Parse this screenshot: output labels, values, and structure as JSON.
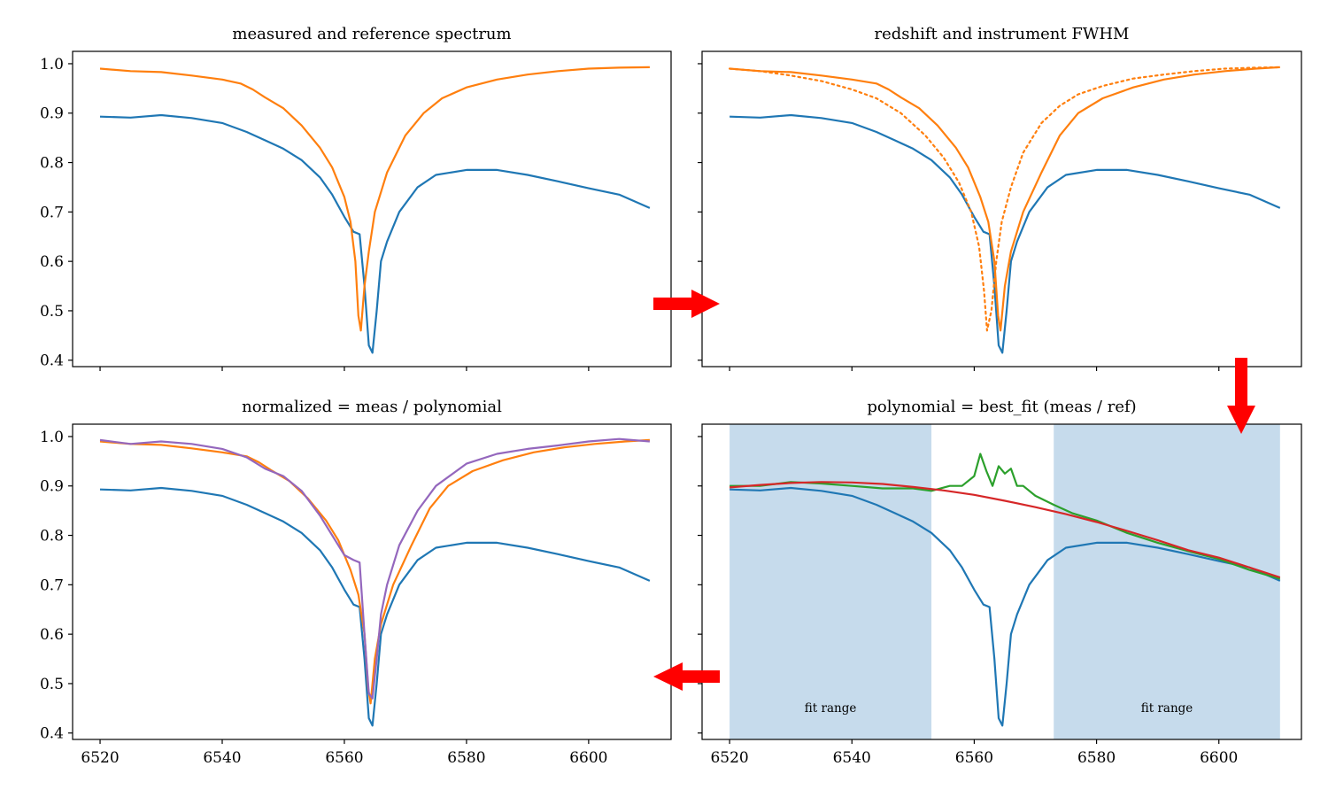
{
  "colors": {
    "measured": "#1f77b4",
    "reference": "#ff7f0e",
    "ratio": "#2ca02c",
    "polynomial": "#d62728",
    "normalized": "#9467bd",
    "fit_region": "#c6dbec",
    "arrow": "#ff0000"
  },
  "chart_data": [
    {
      "type": "line",
      "title": "measured and reference spectrum",
      "xlim": [
        6515.5,
        6613.5
      ],
      "ylim": [
        0.387,
        1.025
      ],
      "xticks": [
        6520,
        6540,
        6560,
        6580,
        6600
      ],
      "yticks": [
        "0.4",
        "0.5",
        "0.6",
        "0.7",
        "0.8",
        "0.9",
        "1.0"
      ],
      "series": [
        {
          "color": "#1f77b4",
          "style": "solid",
          "x": [
            6520,
            6525,
            6530,
            6535,
            6540,
            6544,
            6547,
            6550,
            6553,
            6556,
            6558,
            6560,
            6561.5,
            6562.5,
            6563.3,
            6564,
            6564.6,
            6565.3,
            6566,
            6567,
            6569,
            6572,
            6575,
            6580,
            6585,
            6590,
            6595,
            6600,
            6605,
            6610
          ],
          "y": [
            0.893,
            0.891,
            0.896,
            0.89,
            0.88,
            0.862,
            0.845,
            0.828,
            0.805,
            0.77,
            0.735,
            0.69,
            0.66,
            0.655,
            0.55,
            0.43,
            0.415,
            0.5,
            0.6,
            0.64,
            0.7,
            0.75,
            0.775,
            0.785,
            0.785,
            0.775,
            0.762,
            0.748,
            0.735,
            0.708
          ]
        },
        {
          "color": "#ff7f0e",
          "style": "solid",
          "x": [
            6520,
            6525,
            6530,
            6535,
            6540,
            6543,
            6545,
            6547,
            6550,
            6553,
            6556,
            6558,
            6560,
            6561,
            6561.8,
            6562.3,
            6562.7,
            6563.3,
            6564,
            6565,
            6567,
            6570,
            6573,
            6576,
            6580,
            6585,
            6590,
            6595,
            6600,
            6605,
            6610
          ],
          "y": [
            0.99,
            0.985,
            0.983,
            0.976,
            0.968,
            0.96,
            0.948,
            0.932,
            0.91,
            0.875,
            0.83,
            0.79,
            0.73,
            0.68,
            0.6,
            0.49,
            0.46,
            0.55,
            0.62,
            0.7,
            0.78,
            0.855,
            0.9,
            0.93,
            0.952,
            0.968,
            0.978,
            0.985,
            0.99,
            0.992,
            0.993
          ]
        }
      ]
    },
    {
      "type": "line",
      "title": "redshift and instrument FWHM",
      "xlim": [
        6515.5,
        6613.5
      ],
      "ylim": [
        0.387,
        1.025
      ],
      "xticks": [
        6520,
        6540,
        6560,
        6580,
        6600
      ],
      "yticks": [
        "0.4",
        "0.5",
        "0.6",
        "0.7",
        "0.8",
        "0.9",
        "1.0"
      ],
      "series": [
        {
          "color": "#1f77b4",
          "style": "solid",
          "x": [
            6520,
            6525,
            6530,
            6535,
            6540,
            6544,
            6547,
            6550,
            6553,
            6556,
            6558,
            6560,
            6561.5,
            6562.5,
            6563.3,
            6564,
            6564.6,
            6565.3,
            6566,
            6567,
            6569,
            6572,
            6575,
            6580,
            6585,
            6590,
            6595,
            6600,
            6605,
            6610
          ],
          "y": [
            0.893,
            0.891,
            0.896,
            0.89,
            0.88,
            0.862,
            0.845,
            0.828,
            0.805,
            0.77,
            0.735,
            0.69,
            0.66,
            0.655,
            0.55,
            0.43,
            0.415,
            0.5,
            0.6,
            0.64,
            0.7,
            0.75,
            0.775,
            0.785,
            0.785,
            0.775,
            0.762,
            0.748,
            0.735,
            0.708
          ]
        },
        {
          "color": "#ff7f0e",
          "style": "solid",
          "x": [
            6520,
            6525,
            6530,
            6535,
            6540,
            6544,
            6546,
            6548,
            6551,
            6554,
            6557,
            6559,
            6561,
            6562.3,
            6563.3,
            6563.9,
            6564.3,
            6565,
            6566,
            6568,
            6571,
            6574,
            6577,
            6581,
            6586,
            6591,
            6596,
            6601,
            6606,
            6610
          ],
          "y": [
            0.99,
            0.985,
            0.983,
            0.976,
            0.968,
            0.96,
            0.948,
            0.932,
            0.91,
            0.875,
            0.83,
            0.79,
            0.73,
            0.68,
            0.6,
            0.49,
            0.46,
            0.55,
            0.62,
            0.7,
            0.78,
            0.855,
            0.9,
            0.93,
            0.952,
            0.968,
            0.978,
            0.985,
            0.99,
            0.993
          ]
        },
        {
          "color": "#ff7f0e",
          "style": "dotted",
          "x": [
            6520,
            6525,
            6530,
            6535,
            6540,
            6544,
            6548,
            6552,
            6555,
            6557.5,
            6559.5,
            6560.8,
            6561.6,
            6562.1,
            6562.8,
            6563.6,
            6564.5,
            6566,
            6568,
            6571,
            6574,
            6577,
            6581,
            6586,
            6591,
            6596,
            6601,
            6606,
            6610
          ],
          "y": [
            0.99,
            0.985,
            0.976,
            0.965,
            0.948,
            0.93,
            0.9,
            0.855,
            0.81,
            0.76,
            0.7,
            0.63,
            0.54,
            0.46,
            0.5,
            0.6,
            0.68,
            0.75,
            0.82,
            0.88,
            0.915,
            0.938,
            0.955,
            0.97,
            0.978,
            0.985,
            0.99,
            0.992,
            0.993
          ]
        }
      ]
    },
    {
      "type": "line",
      "title": "normalized = meas / polynomial",
      "xlim": [
        6515.5,
        6613.5
      ],
      "ylim": [
        0.387,
        1.025
      ],
      "xticks": [
        6520,
        6540,
        6560,
        6580,
        6600
      ],
      "yticks": [
        "0.4",
        "0.5",
        "0.6",
        "0.7",
        "0.8",
        "0.9",
        "1.0"
      ],
      "series": [
        {
          "color": "#1f77b4",
          "style": "solid",
          "x": [
            6520,
            6525,
            6530,
            6535,
            6540,
            6544,
            6547,
            6550,
            6553,
            6556,
            6558,
            6560,
            6561.5,
            6562.5,
            6563.3,
            6564,
            6564.6,
            6565.3,
            6566,
            6567,
            6569,
            6572,
            6575,
            6580,
            6585,
            6590,
            6595,
            6600,
            6605,
            6610
          ],
          "y": [
            0.893,
            0.891,
            0.896,
            0.89,
            0.88,
            0.862,
            0.845,
            0.828,
            0.805,
            0.77,
            0.735,
            0.69,
            0.66,
            0.655,
            0.55,
            0.43,
            0.415,
            0.5,
            0.6,
            0.64,
            0.7,
            0.75,
            0.775,
            0.785,
            0.785,
            0.775,
            0.762,
            0.748,
            0.735,
            0.708
          ]
        },
        {
          "color": "#ff7f0e",
          "style": "solid",
          "x": [
            6520,
            6525,
            6530,
            6535,
            6540,
            6544,
            6546,
            6548,
            6551,
            6554,
            6557,
            6559,
            6561,
            6562.3,
            6563.3,
            6563.9,
            6564.3,
            6565,
            6566,
            6568,
            6571,
            6574,
            6577,
            6581,
            6586,
            6591,
            6596,
            6601,
            6606,
            6610
          ],
          "y": [
            0.99,
            0.985,
            0.983,
            0.976,
            0.968,
            0.96,
            0.948,
            0.932,
            0.91,
            0.875,
            0.83,
            0.79,
            0.73,
            0.68,
            0.6,
            0.49,
            0.46,
            0.55,
            0.62,
            0.7,
            0.78,
            0.855,
            0.9,
            0.93,
            0.952,
            0.968,
            0.978,
            0.985,
            0.99,
            0.993
          ]
        },
        {
          "color": "#9467bd",
          "style": "solid",
          "x": [
            6520,
            6525,
            6530,
            6535,
            6540,
            6544,
            6547,
            6550,
            6553,
            6556,
            6558,
            6560,
            6561.5,
            6562.5,
            6563.3,
            6564,
            6564.6,
            6565.3,
            6566,
            6567,
            6569,
            6572,
            6575,
            6580,
            6585,
            6590,
            6595,
            6600,
            6605,
            6610
          ],
          "y": [
            0.993,
            0.985,
            0.99,
            0.985,
            0.975,
            0.958,
            0.935,
            0.92,
            0.89,
            0.84,
            0.8,
            0.76,
            0.75,
            0.745,
            0.6,
            0.48,
            0.47,
            0.55,
            0.64,
            0.7,
            0.78,
            0.85,
            0.9,
            0.945,
            0.965,
            0.975,
            0.982,
            0.99,
            0.995,
            0.99
          ]
        }
      ]
    },
    {
      "type": "line",
      "title": "polynomial = best_fit (meas / ref)",
      "xlim": [
        6515.5,
        6613.5
      ],
      "ylim": [
        0.387,
        1.025
      ],
      "xticks": [
        6520,
        6540,
        6560,
        6580,
        6600
      ],
      "yticks": [
        "0.4",
        "0.5",
        "0.6",
        "0.7",
        "0.8",
        "0.9",
        "1.0"
      ],
      "shaded_regions": [
        {
          "x": [
            6520,
            6553
          ],
          "label": "fit range"
        },
        {
          "x": [
            6573,
            6610
          ],
          "label": "fit range"
        }
      ],
      "series": [
        {
          "color": "#1f77b4",
          "style": "solid",
          "x": [
            6520,
            6525,
            6530,
            6535,
            6540,
            6544,
            6547,
            6550,
            6553,
            6556,
            6558,
            6560,
            6561.5,
            6562.5,
            6563.3,
            6564,
            6564.6,
            6565.3,
            6566,
            6567,
            6569,
            6572,
            6575,
            6580,
            6585,
            6590,
            6595,
            6600,
            6605,
            6610
          ],
          "y": [
            0.893,
            0.891,
            0.896,
            0.89,
            0.88,
            0.862,
            0.845,
            0.828,
            0.805,
            0.77,
            0.735,
            0.69,
            0.66,
            0.655,
            0.55,
            0.43,
            0.415,
            0.5,
            0.6,
            0.64,
            0.7,
            0.75,
            0.775,
            0.785,
            0.785,
            0.775,
            0.762,
            0.748,
            0.735,
            0.708
          ]
        },
        {
          "color": "#2ca02c",
          "style": "solid",
          "x": [
            6520,
            6525,
            6530,
            6535,
            6540,
            6545,
            6550,
            6553,
            6556,
            6558,
            6560,
            6561,
            6562,
            6563,
            6564,
            6565,
            6566,
            6567,
            6568,
            6570,
            6573,
            6576,
            6580,
            6585,
            6590,
            6595,
            6600,
            6605,
            6610
          ],
          "y": [
            0.9,
            0.9,
            0.908,
            0.905,
            0.9,
            0.895,
            0.895,
            0.89,
            0.9,
            0.9,
            0.92,
            0.965,
            0.93,
            0.9,
            0.94,
            0.925,
            0.935,
            0.9,
            0.9,
            0.88,
            0.862,
            0.845,
            0.83,
            0.805,
            0.785,
            0.768,
            0.752,
            0.73,
            0.712
          ]
        },
        {
          "color": "#d62728",
          "style": "solid",
          "x": [
            6520,
            6525,
            6530,
            6535,
            6540,
            6545,
            6550,
            6555,
            6560,
            6565,
            6570,
            6575,
            6580,
            6585,
            6590,
            6595,
            6600,
            6605,
            6610
          ],
          "y": [
            0.897,
            0.902,
            0.906,
            0.908,
            0.907,
            0.904,
            0.898,
            0.891,
            0.882,
            0.87,
            0.857,
            0.843,
            0.827,
            0.809,
            0.79,
            0.77,
            0.755,
            0.735,
            0.715
          ]
        }
      ]
    }
  ]
}
